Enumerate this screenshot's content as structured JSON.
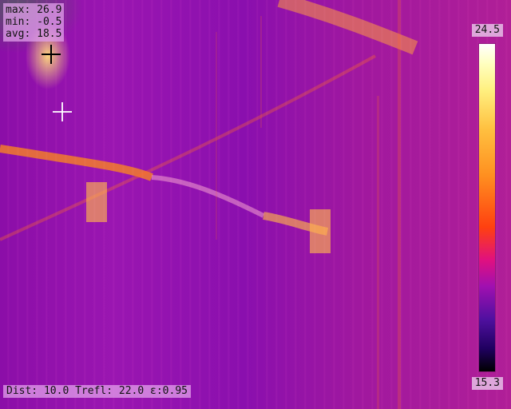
{
  "stats": {
    "max": "max: 26.9",
    "min": "min: -0.5",
    "avg": "avg: 18.5"
  },
  "scale": {
    "max": "24.5",
    "min": "15.3"
  },
  "footer": {
    "text": "Dist: 10.0 Trefl: 22.0 ε:0.95"
  },
  "icons": {
    "cursor_primary": "crosshair-icon",
    "cursor_secondary": "crosshair-icon"
  },
  "palette": {
    "background": "#9a16b1",
    "hot": "#ffd36b",
    "cold": "#200060"
  }
}
